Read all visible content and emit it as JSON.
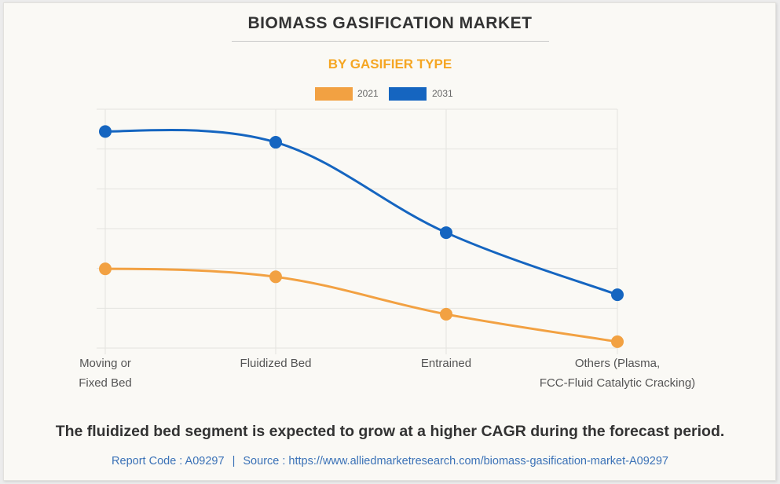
{
  "title": "BIOMASS GASIFICATION MARKET",
  "subtitle": "BY GASIFIER TYPE",
  "colors": {
    "series_2021": "#f2a142",
    "series_2031": "#1565c0",
    "title": "#333333",
    "subtitle": "#f5a623",
    "footer_link": "#3b72b7",
    "grid": "#e4e4e0"
  },
  "chart_data": {
    "type": "line",
    "title": "BIOMASS GASIFICATION MARKET",
    "subtitle": "BY GASIFIER TYPE",
    "xlabel": "",
    "ylabel": "",
    "categories": [
      "Moving or Fixed Bed",
      "Fluidized Bed",
      "Entrained",
      "Others (Plasma, FCC-Fluid Catalytic Cracking)"
    ],
    "category_label_lines": [
      [
        "Moving or",
        "Fixed Bed"
      ],
      [
        "Fluidized Bed"
      ],
      [
        "Entrained"
      ],
      [
        "Others (Plasma,",
        "FCC-Fluid Catalytic Cracking)"
      ]
    ],
    "series": [
      {
        "name": "2021",
        "color": "#f2a142",
        "values": [
          1.99,
          1.79,
          0.85,
          0.16
        ]
      },
      {
        "name": "2031",
        "color": "#1565c0",
        "values": [
          5.44,
          5.17,
          2.9,
          1.34
        ]
      }
    ],
    "ylim": [
      0,
      6
    ],
    "y_gridlines": 7,
    "y_tick_labels_shown": false,
    "y_units_note": "unlabeled axis; values in relative gridline units",
    "grid": true,
    "smooth": true,
    "legend": {
      "position": "top-center",
      "entries": [
        "2021",
        "2031"
      ]
    }
  },
  "takeaway": "The fluidized bed segment is expected to grow at a higher CAGR during the forecast period.",
  "footer": {
    "report_code_label": "Report Code : A09297",
    "separator": "|",
    "source_label": "Source : https://www.alliedmarketresearch.com/biomass-gasification-market-A09297"
  }
}
